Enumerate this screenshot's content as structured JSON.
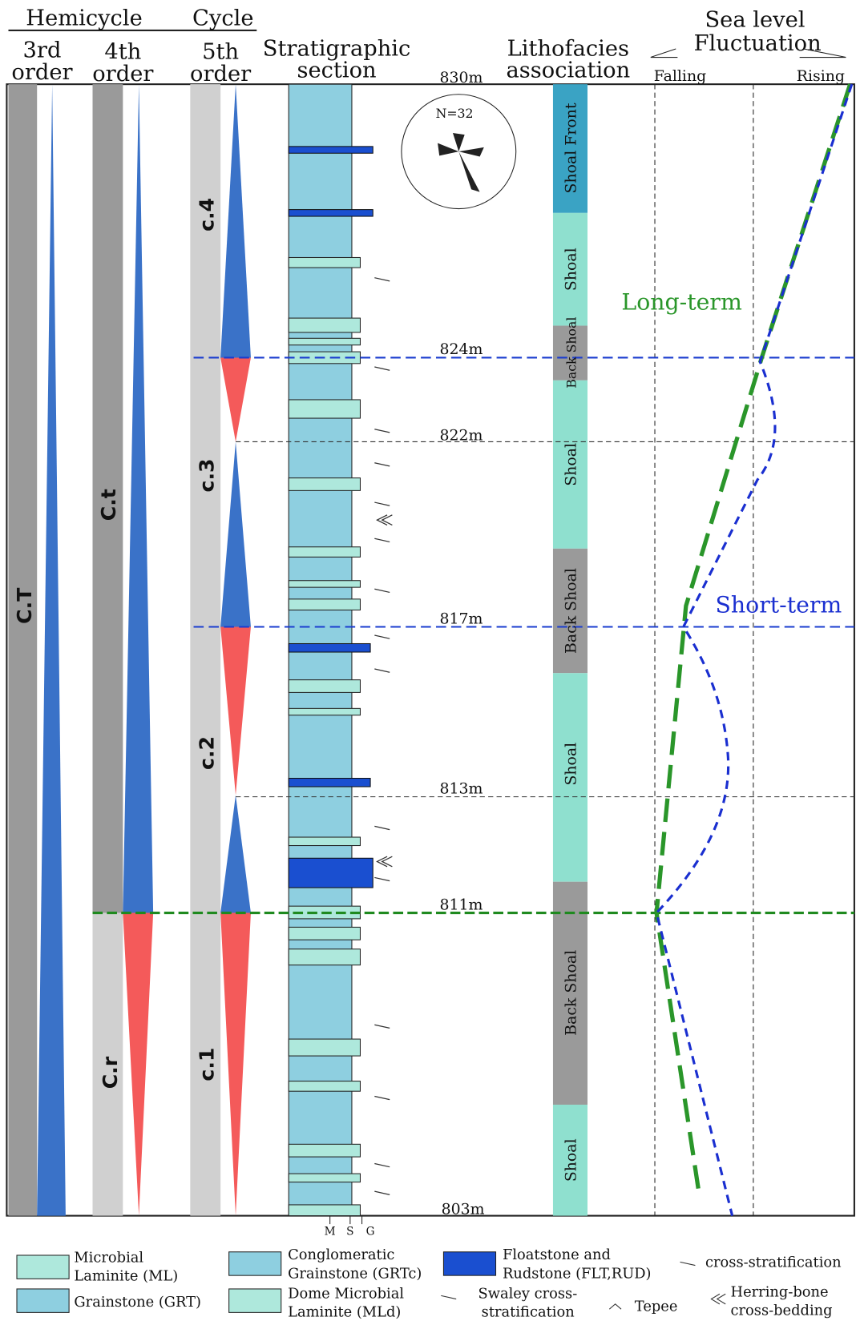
{
  "header": {
    "hemicycle": "Hemicycle",
    "cycle": "Cycle",
    "columns": [
      [
        "3rd",
        "order"
      ],
      [
        "4th",
        "order"
      ],
      [
        "5th",
        "order"
      ],
      [
        "Stratigraphic",
        "section"
      ],
      [
        "Lithofacies",
        "association"
      ],
      [
        "Sea level",
        "Fluctuation"
      ]
    ],
    "falling": "Falling",
    "rising": "Rising"
  },
  "cycles": {
    "third": "C.T",
    "fourth": [
      "C.t",
      "C.r"
    ],
    "fifth": [
      "c.4",
      "c.3",
      "c.2",
      "c.1"
    ]
  },
  "depths": [
    "830m",
    "824m",
    "822m",
    "817m",
    "813m",
    "811m",
    "803m"
  ],
  "grain_scale": [
    "M",
    "S",
    "G"
  ],
  "rose": "N=32",
  "lithofacies": [
    "Shoal Front",
    "Shoal",
    "Back Shoal",
    "Shoal",
    "Back Shoal",
    "Shoal",
    "Back Shoal",
    "Shoal"
  ],
  "curves": {
    "long": "Long-term",
    "short": "Short-term"
  },
  "legend": [
    [
      "Microbial",
      "Laminite (ML)"
    ],
    [
      "Grainstone (GRT)"
    ],
    [
      "Conglomeratic",
      "Grainstone (GRTc)"
    ],
    [
      "Dome Microbial",
      "Laminite (MLd)"
    ],
    [
      "Floatstone and",
      "Rudstone (FLT,RUD)"
    ],
    [
      "Swaley cross-",
      "stratification"
    ],
    [
      "Tepee"
    ],
    [
      "cross-stratification"
    ],
    [
      "Herring-bone",
      "cross-bedding"
    ]
  ]
}
